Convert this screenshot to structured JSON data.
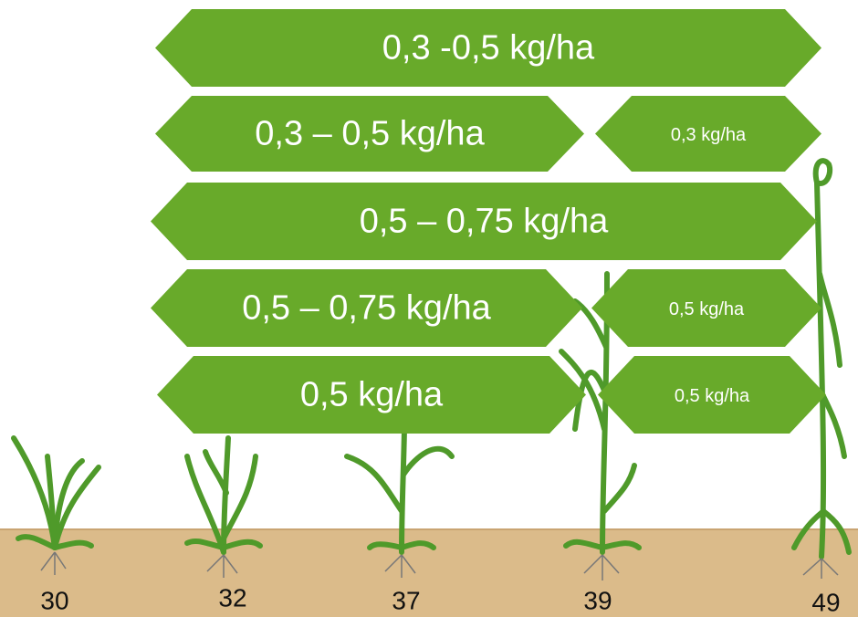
{
  "arrows": [
    {
      "label": "0,3 -0,5 kg/ha"
    },
    {
      "label": "0,3 – 0,5 kg/ha"
    },
    {
      "label": "0,3 kg/ha"
    },
    {
      "label": "0,5 – 0,75 kg/ha"
    },
    {
      "label": "0,5 – 0,75 kg/ha"
    },
    {
      "label": "0,5 kg/ha"
    },
    {
      "label": "0,5 kg/ha"
    },
    {
      "label": "0,5 kg/ha"
    }
  ],
  "stages": [
    "30",
    "32",
    "37",
    "39",
    "49"
  ]
}
